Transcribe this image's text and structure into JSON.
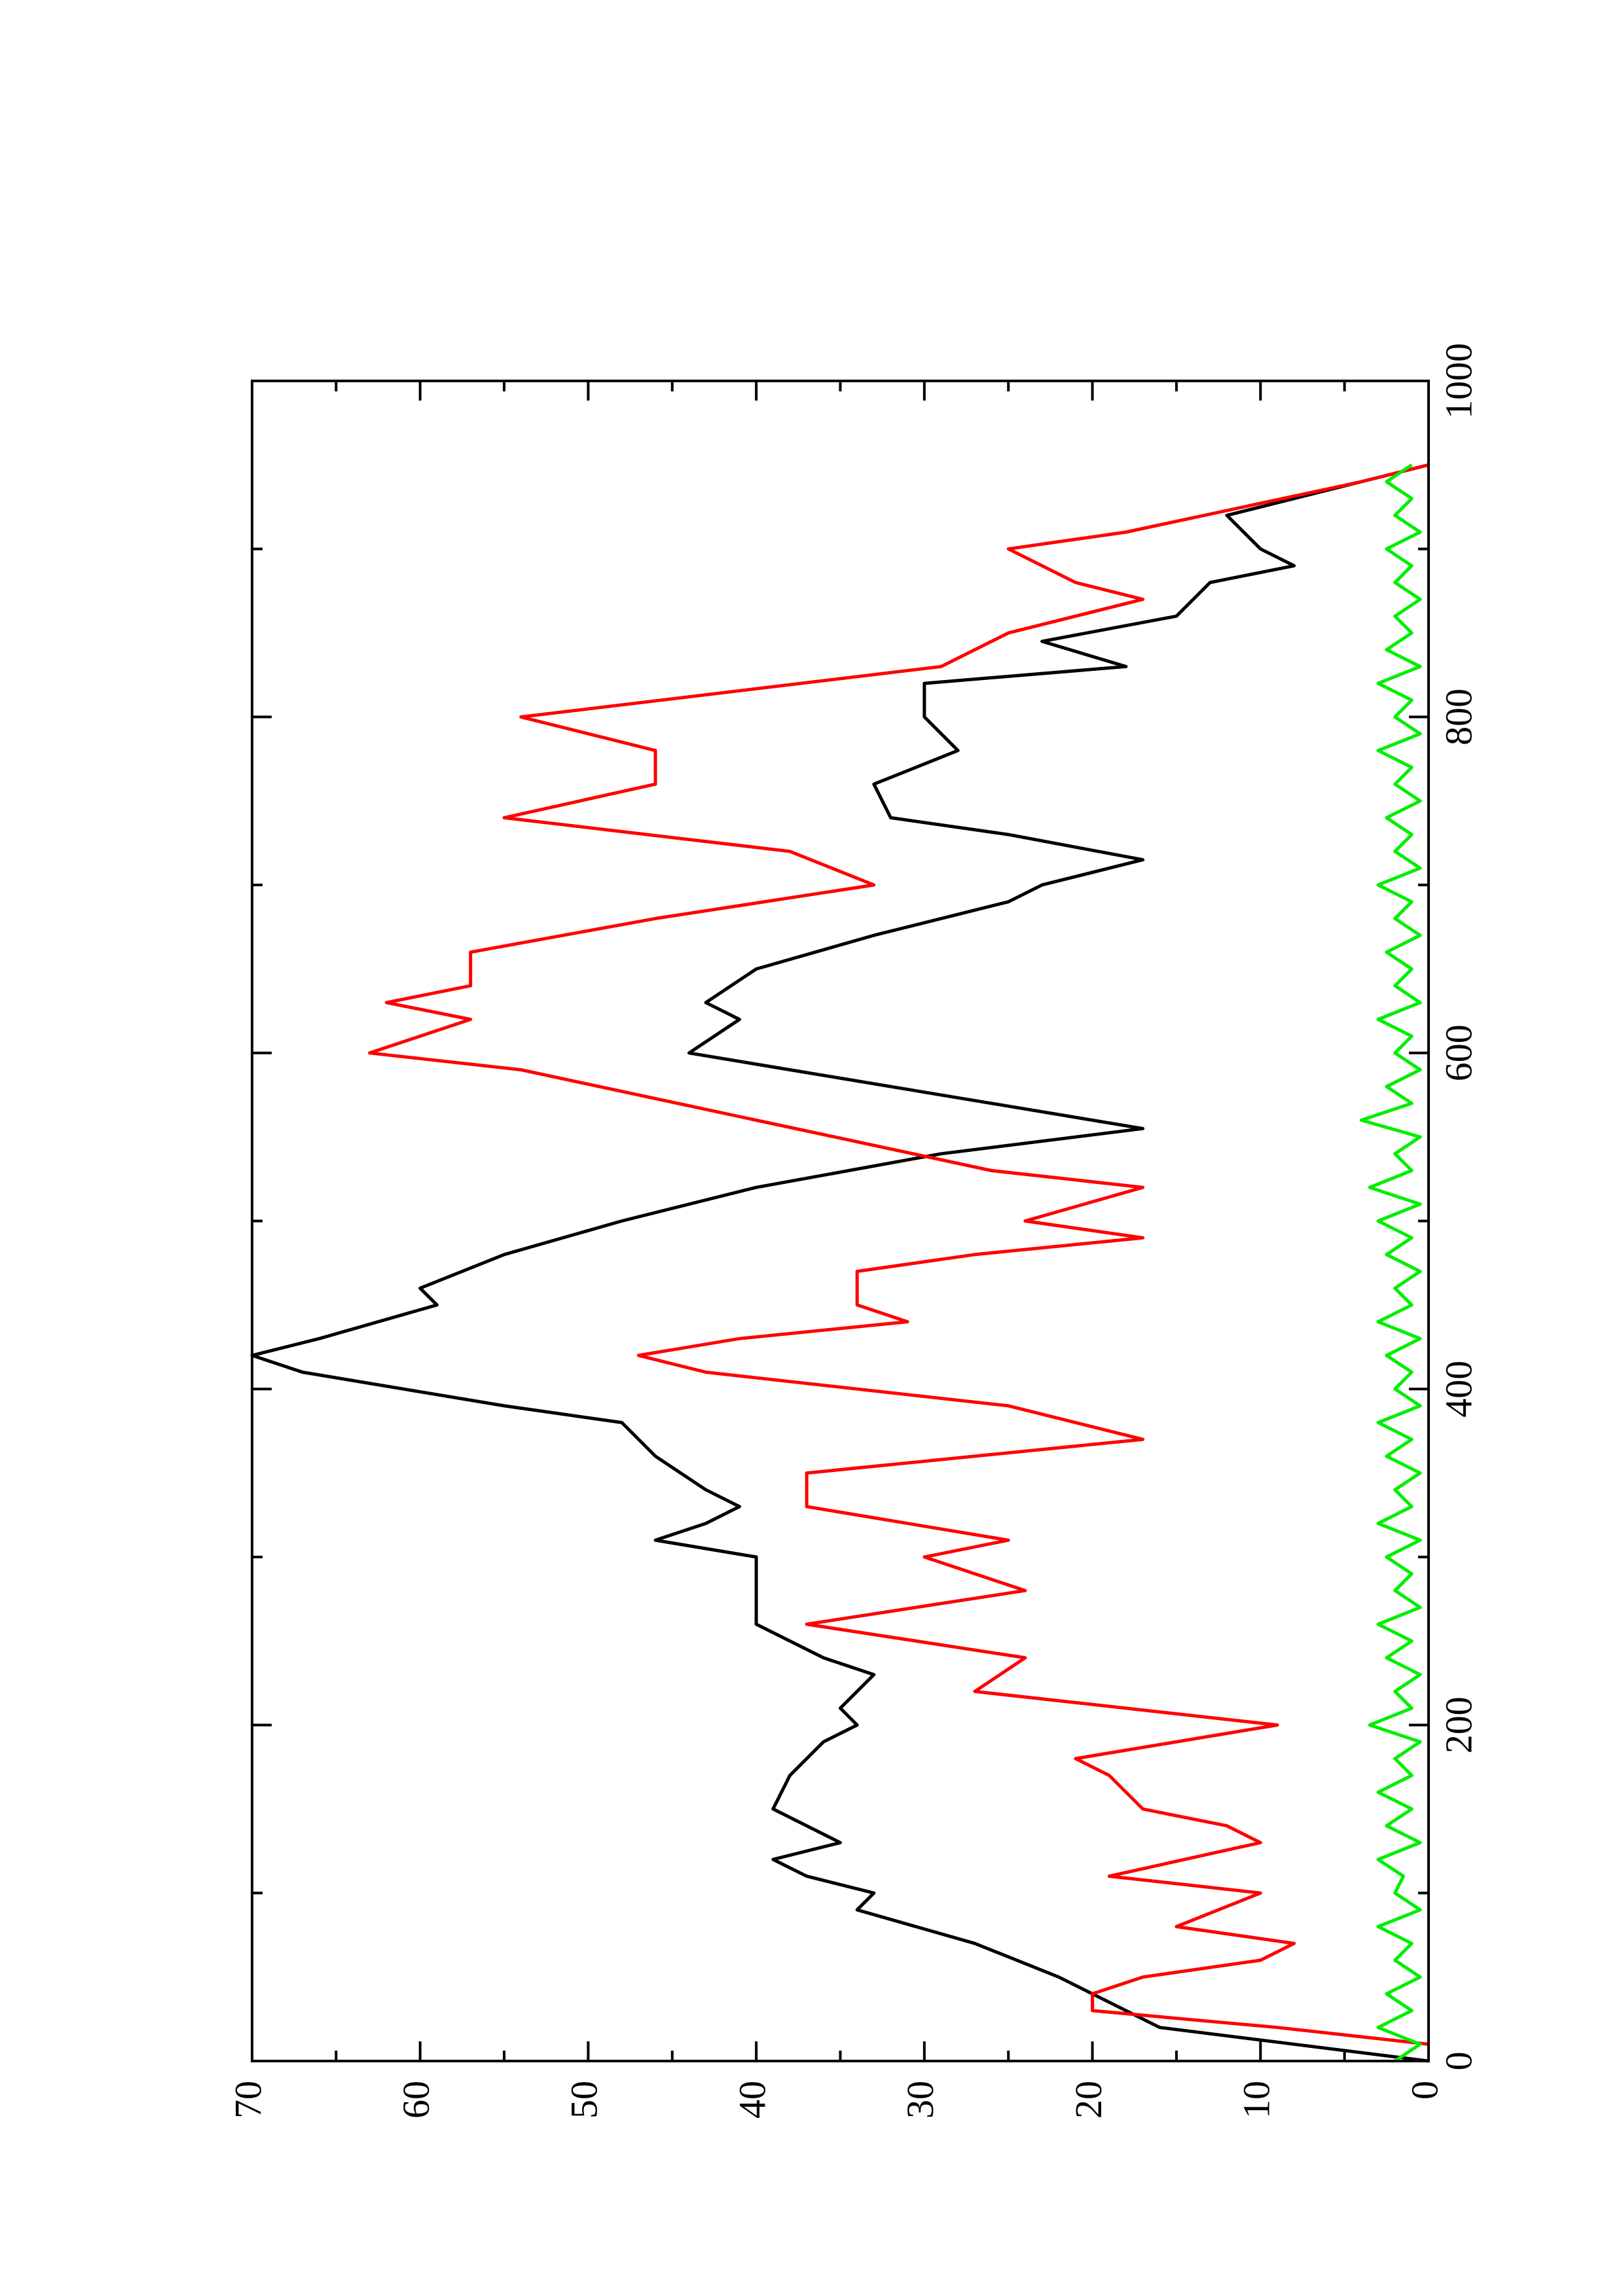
{
  "chart_data": {
    "type": "line",
    "orientation": "rotated",
    "xlim": [
      0,
      1000
    ],
    "xticks": [
      0,
      200,
      400,
      600,
      800,
      1000
    ],
    "xminorticks": [
      100,
      300,
      500,
      700,
      900
    ],
    "ylim": [
      0,
      70
    ],
    "yticks": [
      0,
      10,
      20,
      30,
      40,
      50,
      60,
      70
    ],
    "yminorticks": [
      5,
      15,
      25,
      35,
      45,
      55,
      65
    ],
    "grid": false,
    "series": [
      {
        "color": "#000000",
        "x": [
          0,
          10,
          20,
          30,
          50,
          70,
          90,
          100,
          110,
          120,
          130,
          150,
          170,
          190,
          200,
          210,
          230,
          240,
          260,
          280,
          300,
          310,
          320,
          330,
          340,
          360,
          380,
          390,
          400,
          410,
          420,
          430,
          450,
          460,
          480,
          500,
          520,
          540,
          555,
          570,
          590,
          600,
          620,
          630,
          650,
          670,
          690,
          700,
          715,
          730,
          740,
          760,
          780,
          800,
          820,
          830,
          845,
          860,
          880,
          890,
          900,
          920,
          940,
          950
        ],
        "values": [
          0,
          8,
          16,
          18,
          22,
          27,
          34,
          33,
          37,
          39,
          35,
          39,
          38,
          36,
          34,
          35,
          33,
          36,
          40,
          40,
          40,
          46,
          43,
          41,
          43,
          46,
          48,
          55,
          61,
          67,
          70,
          66,
          59,
          60,
          55,
          48,
          40,
          29,
          17,
          26,
          38,
          44,
          41,
          43,
          40,
          33,
          25,
          23,
          17,
          25,
          32,
          33,
          28,
          30,
          30,
          18,
          23,
          15,
          13,
          8,
          10,
          12,
          4,
          0
        ]
      },
      {
        "color": "#ff0000",
        "x": [
          10,
          20,
          30,
          40,
          50,
          60,
          70,
          80,
          100,
          110,
          130,
          140,
          150,
          170,
          180,
          200,
          220,
          240,
          260,
          280,
          300,
          310,
          330,
          350,
          360,
          370,
          390,
          410,
          420,
          430,
          440,
          450,
          470,
          480,
          490,
          500,
          520,
          530,
          560,
          590,
          600,
          620,
          630,
          640,
          660,
          680,
          700,
          720,
          740,
          760,
          780,
          800,
          830,
          850,
          870,
          880,
          900,
          910,
          940,
          950
        ],
        "values": [
          0,
          9,
          20,
          20,
          17,
          10,
          8,
          15,
          10,
          19,
          10,
          12,
          17,
          19,
          21,
          9,
          27,
          24,
          37,
          24,
          30,
          25,
          37,
          37,
          27,
          17,
          25,
          43,
          47,
          41,
          31,
          34,
          34,
          27,
          17,
          24,
          17,
          26,
          40,
          54,
          63,
          57,
          62,
          57,
          57,
          46,
          33,
          38,
          55,
          46,
          46,
          54,
          29,
          25,
          17,
          21,
          25,
          18,
          4,
          0
        ]
      },
      {
        "color": "#00ee00",
        "x": [
          0,
          10,
          20,
          30,
          40,
          50,
          60,
          70,
          80,
          90,
          100,
          110,
          120,
          130,
          140,
          150,
          160,
          170,
          180,
          190,
          200,
          210,
          220,
          230,
          240,
          250,
          260,
          270,
          280,
          290,
          300,
          310,
          320,
          330,
          340,
          350,
          360,
          370,
          380,
          390,
          400,
          410,
          420,
          430,
          440,
          450,
          460,
          470,
          480,
          490,
          500,
          510,
          520,
          530,
          540,
          550,
          560,
          570,
          580,
          590,
          600,
          610,
          620,
          630,
          640,
          650,
          660,
          670,
          680,
          690,
          700,
          710,
          720,
          730,
          740,
          750,
          760,
          770,
          780,
          790,
          800,
          810,
          820,
          830,
          840,
          850,
          860,
          870,
          880,
          890,
          900,
          910,
          920,
          930,
          940,
          950
        ],
        "values": [
          2,
          0.5,
          3,
          1,
          2.5,
          0.5,
          2,
          1,
          3,
          0.5,
          2,
          1.5,
          3,
          0.5,
          2.5,
          1,
          3,
          1,
          2,
          0.5,
          3.5,
          1,
          2,
          0.5,
          2.5,
          1,
          3,
          0.5,
          2,
          1,
          2.5,
          0.5,
          3,
          1,
          2,
          0.5,
          2.5,
          1,
          3,
          0.5,
          2,
          1,
          2.5,
          0.5,
          3,
          1,
          2,
          0.5,
          2.5,
          1,
          3,
          0.5,
          3.5,
          1,
          2,
          0.5,
          4,
          1,
          2.5,
          0.5,
          2,
          1,
          3,
          0.5,
          2,
          1,
          2.5,
          0.5,
          2,
          1,
          3,
          0.5,
          2,
          1,
          2.5,
          0.5,
          2,
          1,
          3,
          0.5,
          2,
          1,
          3,
          0.5,
          2.5,
          1,
          2,
          0.5,
          2,
          1,
          2.5,
          0.5,
          2,
          1,
          2.5,
          1
        ]
      }
    ]
  }
}
